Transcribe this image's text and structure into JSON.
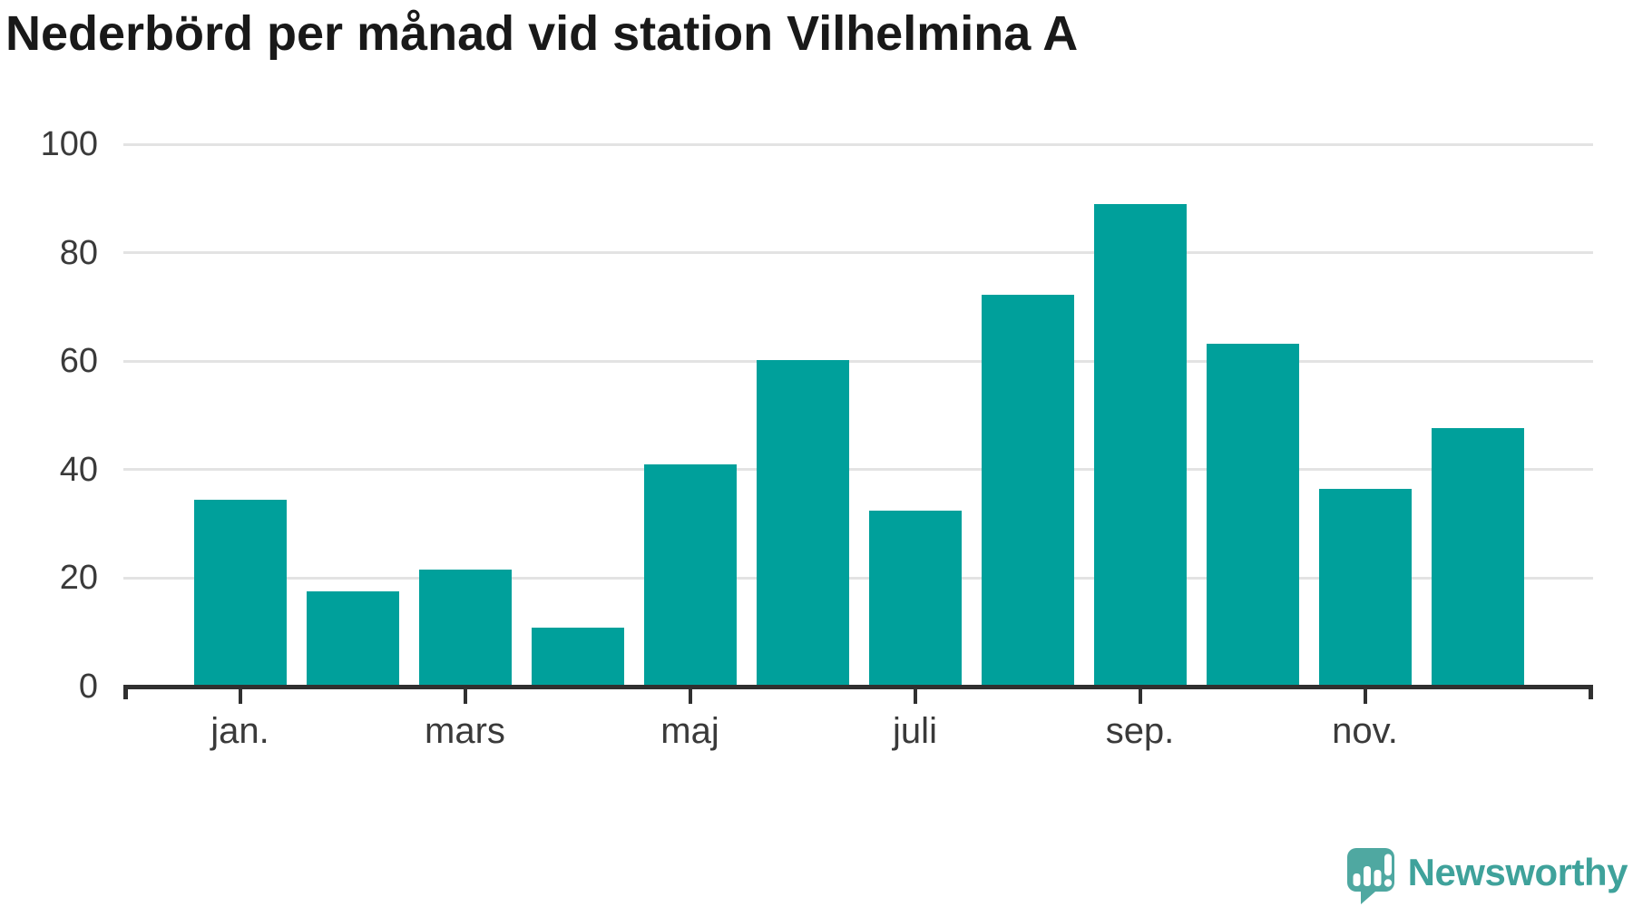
{
  "chart_data": {
    "type": "bar",
    "title": "Nederbörd per månad vid station Vilhelmina A",
    "xlabel": "",
    "ylabel": "",
    "values": [
      34.4,
      17.6,
      21.6,
      10.9,
      41.0,
      60.2,
      32.4,
      72.2,
      88.9,
      63.2,
      36.4,
      47.7
    ],
    "x_tick_labels": [
      "jan.",
      "mars",
      "maj",
      "juli",
      "sep.",
      "nov."
    ],
    "x_tick_bar_indices": [
      0,
      2,
      4,
      6,
      8,
      10
    ],
    "y_ticks": [
      0,
      20,
      40,
      60,
      80,
      100
    ],
    "y_tick_labels": [
      "0",
      "20",
      "40",
      "60",
      "80",
      "100"
    ],
    "ylim": [
      0,
      100
    ],
    "grid": true,
    "legend": false,
    "bar_color": "#00A09B",
    "grid_color": "#E3E3E3",
    "axis_color": "#303030",
    "tick_label_color": "#3A3A3A",
    "title_color": "#191919"
  },
  "logo": {
    "text": "Newsworthy",
    "text_color": "#3FA29B",
    "icon_color": "#4FA8A1",
    "icon": "newsworthy-speech-bubble-bar-chart-icon"
  }
}
